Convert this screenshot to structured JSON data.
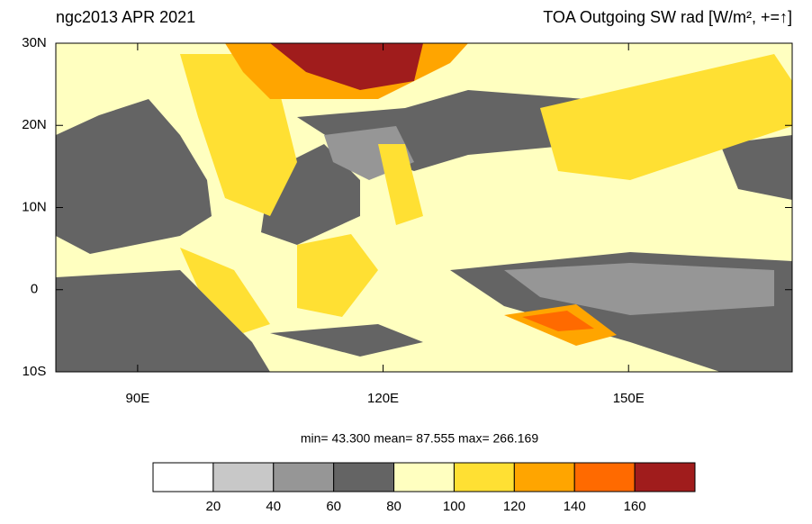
{
  "map": {
    "title_left": "ngc2013 APR 2021",
    "title_right": "TOA Outgoing SW rad [W/m², +=↑]",
    "lonlim": [
      80,
      170
    ],
    "latlim": [
      -10,
      30
    ],
    "lonticks": [
      {
        "value": 90,
        "label": "90E"
      },
      {
        "value": 120,
        "label": "120E"
      },
      {
        "value": 150,
        "label": "150E"
      }
    ],
    "latticks": [
      {
        "value": 30,
        "label": "30N"
      },
      {
        "value": 20,
        "label": "20N"
      },
      {
        "value": 10,
        "label": "10N"
      },
      0,
      {
        "value": -10,
        "label": "10S"
      }
    ],
    "stats": "min=  43.300  mean=  87.555  max= 266.169",
    "colorbar": {
      "levels": [
        20,
        40,
        60,
        80,
        100,
        120,
        140,
        160
      ],
      "colors": [
        "#ffffff",
        "#c8c8c8",
        "#969696",
        "#646464",
        "#ffffc0",
        "#ffe033",
        "#ffa500",
        "#ff6a00",
        "#a01c1c"
      ]
    }
  }
}
